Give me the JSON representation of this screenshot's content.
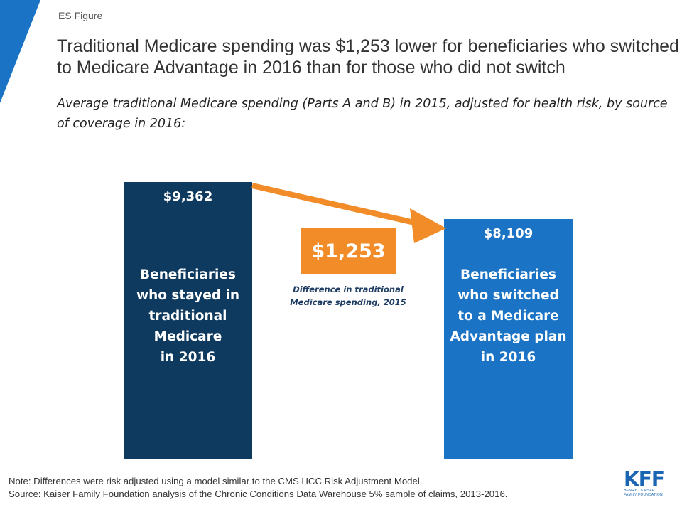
{
  "header": {
    "eyebrow": "ES Figure",
    "title": "Traditional Medicare spending was $1,253 lower for beneficiaries who switched to Medicare Advantage in 2016 than for those who did not switch",
    "subtitle": "Average traditional Medicare spending (Parts A and B) in 2015, adjusted for health risk, by source of coverage in 2016:"
  },
  "chart_data": {
    "type": "bar",
    "categories": [
      "Beneficiaries\nwho stayed in\ntraditional\nMedicare\nin 2016",
      "Beneficiaries\nwho switched\nto a Medicare\nAdvantage plan\nin 2016"
    ],
    "values": [
      9362,
      8109
    ],
    "value_labels": [
      "$9,362",
      "$8,109"
    ],
    "colors": [
      "#0f3a5f",
      "#1a73c4"
    ],
    "ylim": [
      0,
      9362
    ],
    "grid": false,
    "annotation": {
      "value": "$1,253",
      "caption": "Difference in traditional\nMedicare spending, 2015",
      "color": "#f28c28"
    }
  },
  "footer": {
    "note": "Note: Differences were risk adjusted using a model similar to the CMS HCC Risk Adjustment Model.",
    "source": "Source: Kaiser Family Foundation analysis of the Chronic Conditions Data Warehouse 5% sample of claims, 2013-2016."
  },
  "logo": {
    "mark": "KFF",
    "line1": "HENRY J KAISER",
    "line2": "FAMILY FOUNDATION",
    "color": "#1a66b3"
  },
  "theme": {
    "corner_accent": "#1a73c4",
    "baseline": "#9a9a9a"
  }
}
